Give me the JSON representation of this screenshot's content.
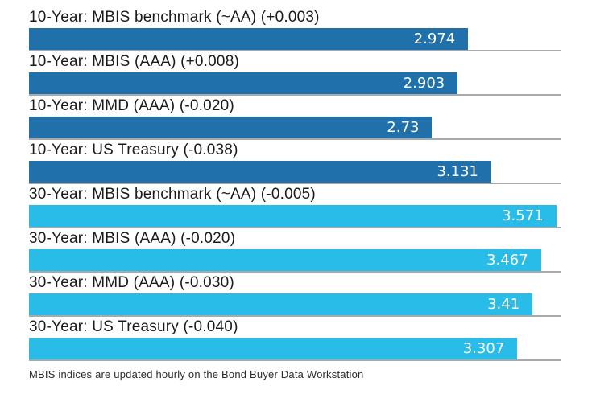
{
  "chart_data": {
    "type": "bar",
    "orientation": "horizontal",
    "title": "",
    "xlabel": "",
    "ylabel": "",
    "xlim": [
      0,
      3.6
    ],
    "grid": "baseline-per-row",
    "value_label_position": "inside-right",
    "series_colors": {
      "ten_year": "#2070AC",
      "thirty_year": "#29BCE8"
    },
    "rows": [
      {
        "label": "10-Year: MBIS benchmark (~AA) (+0.003)",
        "value": 2.974,
        "display_value": "2.974",
        "series": "ten_year"
      },
      {
        "label": "10-Year: MBIS (AAA) (+0.008)",
        "value": 2.903,
        "display_value": "2.903",
        "series": "ten_year"
      },
      {
        "label": "10-Year: MMD (AAA) (-0.020)",
        "value": 2.73,
        "display_value": "2.73",
        "series": "ten_year"
      },
      {
        "label": "10-Year: US Treasury (-0.038)",
        "value": 3.131,
        "display_value": "3.131",
        "series": "ten_year"
      },
      {
        "label": "30-Year: MBIS benchmark (~AA) (-0.005)",
        "value": 3.571,
        "display_value": "3.571",
        "series": "thirty_year"
      },
      {
        "label": "30-Year: MBIS (AAA) (-0.020)",
        "value": 3.467,
        "display_value": "3.467",
        "series": "thirty_year"
      },
      {
        "label": "30-Year: MMD (AAA) (-0.030)",
        "value": 3.41,
        "display_value": "3.41",
        "series": "thirty_year"
      },
      {
        "label": "30-Year: US Treasury (-0.040)",
        "value": 3.307,
        "display_value": "3.307",
        "series": "thirty_year"
      }
    ]
  },
  "footer": {
    "note": "MBIS indices are updated hourly on the Bond Buyer Data Workstation"
  },
  "colors": {
    "background": "#FFFFFF",
    "baseline_gray": "#A7A9AB",
    "label_text": "#1A1A1A",
    "bar_value_text": "#FFFFFF"
  }
}
